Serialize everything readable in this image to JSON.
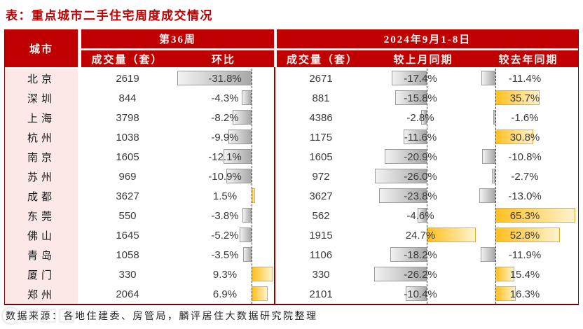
{
  "title": "表：重点城市二手住宅周度成交情况",
  "source_note": "数据来源：各地住建委、房管局，麟评居住大数据研究院整理",
  "colors": {
    "header_red": "#c00000",
    "border_dark_red": "#8b0000",
    "city_column_pink": "#fce9e7",
    "negative_bar_gray": "#a8a8a8",
    "positive_bar_gold": "#ffc000",
    "title_red": "#c00000"
  },
  "table": {
    "city_header": "城市",
    "groups": [
      {
        "label": "第36周",
        "columns": [
          "成交量（套）",
          "环比"
        ]
      },
      {
        "label": "2024年9月1-8日",
        "columns": [
          "成交量（套）",
          "较上月同期",
          "较去年同期"
        ]
      }
    ],
    "rows": [
      {
        "city": "北京",
        "w36_volume": "2619",
        "w36_wow_label": "-31.8%",
        "w36_wow": -31.8,
        "sep_volume": "2671",
        "mom_label": "-17.4%",
        "mom": -17.4,
        "yoy_label": "-11.4%",
        "yoy": -11.4
      },
      {
        "city": "深圳",
        "w36_volume": "844",
        "w36_wow_label": "-4.3%",
        "w36_wow": -4.3,
        "sep_volume": "881",
        "mom_label": "-15.8%",
        "mom": -15.8,
        "yoy_label": "35.7%",
        "yoy": 35.7
      },
      {
        "city": "上海",
        "w36_volume": "3798",
        "w36_wow_label": "-8.2%",
        "w36_wow": -8.2,
        "sep_volume": "4386",
        "mom_label": "-2.8%",
        "mom": -2.8,
        "yoy_label": "-1.6%",
        "yoy": -1.6
      },
      {
        "city": "杭州",
        "w36_volume": "1038",
        "w36_wow_label": "-9.9%",
        "w36_wow": -9.9,
        "sep_volume": "1175",
        "mom_label": "-11.6%",
        "mom": -11.6,
        "yoy_label": "30.8%",
        "yoy": 30.8
      },
      {
        "city": "南京",
        "w36_volume": "1605",
        "w36_wow_label": "-12.1%",
        "w36_wow": -12.1,
        "sep_volume": "1605",
        "mom_label": "-20.9%",
        "mom": -20.9,
        "yoy_label": "-10.8%",
        "yoy": -10.8
      },
      {
        "city": "苏州",
        "w36_volume": "969",
        "w36_wow_label": "-10.9%",
        "w36_wow": -10.9,
        "sep_volume": "972",
        "mom_label": "-26.0%",
        "mom": -26.0,
        "yoy_label": "-2.7%",
        "yoy": -2.7
      },
      {
        "city": "成都",
        "w36_volume": "3627",
        "w36_wow_label": "1.5%",
        "w36_wow": 1.5,
        "sep_volume": "3627",
        "mom_label": "-23.8%",
        "mom": -23.8,
        "yoy_label": "-13.0%",
        "yoy": -13.0
      },
      {
        "city": "东莞",
        "w36_volume": "550",
        "w36_wow_label": "-3.8%",
        "w36_wow": -3.8,
        "sep_volume": "562",
        "mom_label": "-4.6%",
        "mom": -4.6,
        "yoy_label": "65.3%",
        "yoy": 65.3
      },
      {
        "city": "佛山",
        "w36_volume": "1645",
        "w36_wow_label": "-5.2%",
        "w36_wow": -5.2,
        "sep_volume": "1915",
        "mom_label": "24.7%",
        "mom": 24.7,
        "yoy_label": "52.8%",
        "yoy": 52.8
      },
      {
        "city": "青岛",
        "w36_volume": "1058",
        "w36_wow_label": "-3.5%",
        "w36_wow": -3.5,
        "sep_volume": "1106",
        "mom_label": "-18.2%",
        "mom": -18.2,
        "yoy_label": "-11.9%",
        "yoy": -11.9
      },
      {
        "city": "厦门",
        "w36_volume": "330",
        "w36_wow_label": "9.3%",
        "w36_wow": 9.3,
        "sep_volume": "330",
        "mom_label": "-26.2%",
        "mom": -26.2,
        "yoy_label": "15.4%",
        "yoy": 15.4
      },
      {
        "city": "郑州",
        "w36_volume": "2064",
        "w36_wow_label": "6.9%",
        "w36_wow": 6.9,
        "sep_volume": "2101",
        "mom_label": "-10.4%",
        "mom": -10.4,
        "yoy_label": "16.3%",
        "yoy": 16.3
      }
    ]
  },
  "chart_data": {
    "type": "table",
    "title": "表：重点城市二手住宅周度成交情况",
    "columns": [
      "城市",
      "第36周 成交量（套）",
      "第36周 环比",
      "2024年9月1-8日 成交量（套）",
      "2024年9月1-8日 较上月同期",
      "2024年9月1-8日 较去年同期"
    ],
    "rows": [
      [
        "北京",
        2619,
        -31.8,
        2671,
        -17.4,
        -11.4
      ],
      [
        "深圳",
        844,
        -4.3,
        881,
        -15.8,
        35.7
      ],
      [
        "上海",
        3798,
        -8.2,
        4386,
        -2.8,
        -1.6
      ],
      [
        "杭州",
        1038,
        -9.9,
        1175,
        -11.6,
        30.8
      ],
      [
        "南京",
        1605,
        -12.1,
        1605,
        -20.9,
        -10.8
      ],
      [
        "苏州",
        969,
        -10.9,
        972,
        -26.0,
        -2.7
      ],
      [
        "成都",
        3627,
        1.5,
        3627,
        -23.8,
        -13.0
      ],
      [
        "东莞",
        550,
        -3.8,
        562,
        -4.6,
        65.3
      ],
      [
        "佛山",
        1645,
        -5.2,
        1915,
        24.7,
        52.8
      ],
      [
        "青岛",
        1058,
        -3.5,
        1106,
        -18.2,
        -11.9
      ],
      [
        "厦门",
        330,
        9.3,
        330,
        -26.2,
        15.4
      ],
      [
        "郑州",
        2064,
        6.9,
        2101,
        -10.4,
        16.3
      ]
    ],
    "layout_hints": {
      "percent_units": "%",
      "negative_bars": "gray gradient extending left of dashed zero axis",
      "positive_bars": "gold gradient extending right of dashed zero axis",
      "wow_axis_range_pct": [
        -31.8,
        9.3
      ],
      "mom_axis_range_pct": [
        -26.2,
        24.7
      ],
      "yoy_axis_range_pct": [
        -13.0,
        65.3
      ]
    },
    "source": "数据来源：各地住建委、房管局，麟评居住大数据研究院整理"
  }
}
